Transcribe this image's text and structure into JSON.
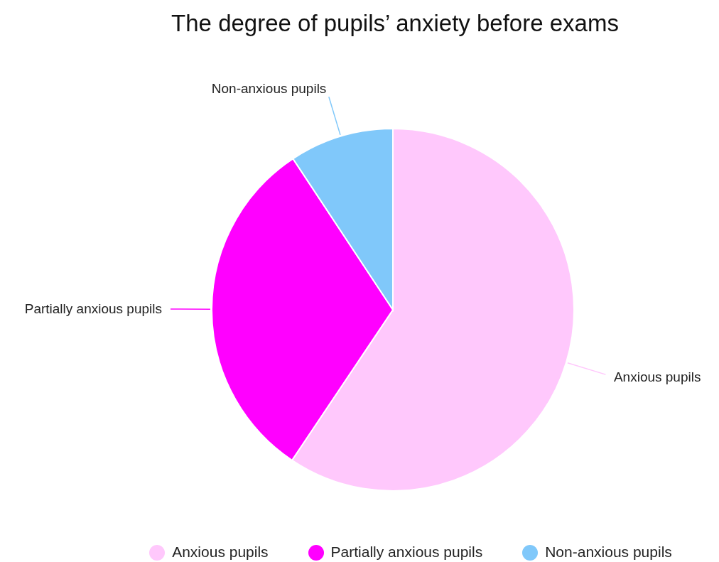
{
  "chart_data": {
    "type": "pie",
    "title": "The degree of pupils’ anxiety before exams",
    "categories": [
      "Anxious pupils",
      "Partially anxious pupils",
      "Non-anxious pupils"
    ],
    "values": [
      59.4,
      31.3,
      9.3
    ],
    "colors": [
      "#ffc8fc",
      "#ff00ff",
      "#80c8fa"
    ],
    "legend": "bottom"
  }
}
